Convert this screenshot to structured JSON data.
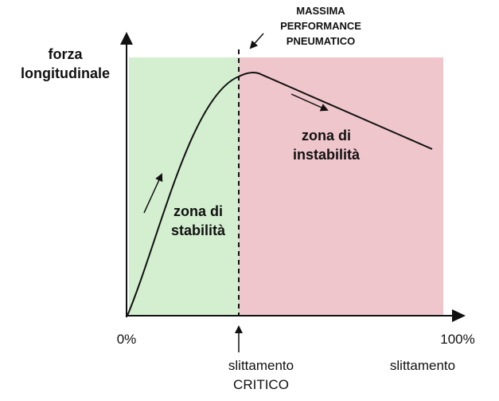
{
  "annotation": {
    "line1": "MASSIMA",
    "line2": "PERFORMANCE",
    "line3": "PNEUMATICO"
  },
  "y_axis": {
    "line1": "forza",
    "line2": "longitudinale"
  },
  "zones": {
    "stable": {
      "line1": "zona di",
      "line2": "stabilità",
      "color": "#d3efcf"
    },
    "unstable": {
      "line1": "zona di",
      "line2": "instabilità",
      "color": "#efc6cc"
    }
  },
  "x_axis": {
    "start": "0%",
    "end": "100%",
    "label": "slittamento"
  },
  "critical": {
    "line1": "slittamento",
    "line2": "CRITICO"
  },
  "colors": {
    "axis": "#111111",
    "curve": "#111111"
  }
}
